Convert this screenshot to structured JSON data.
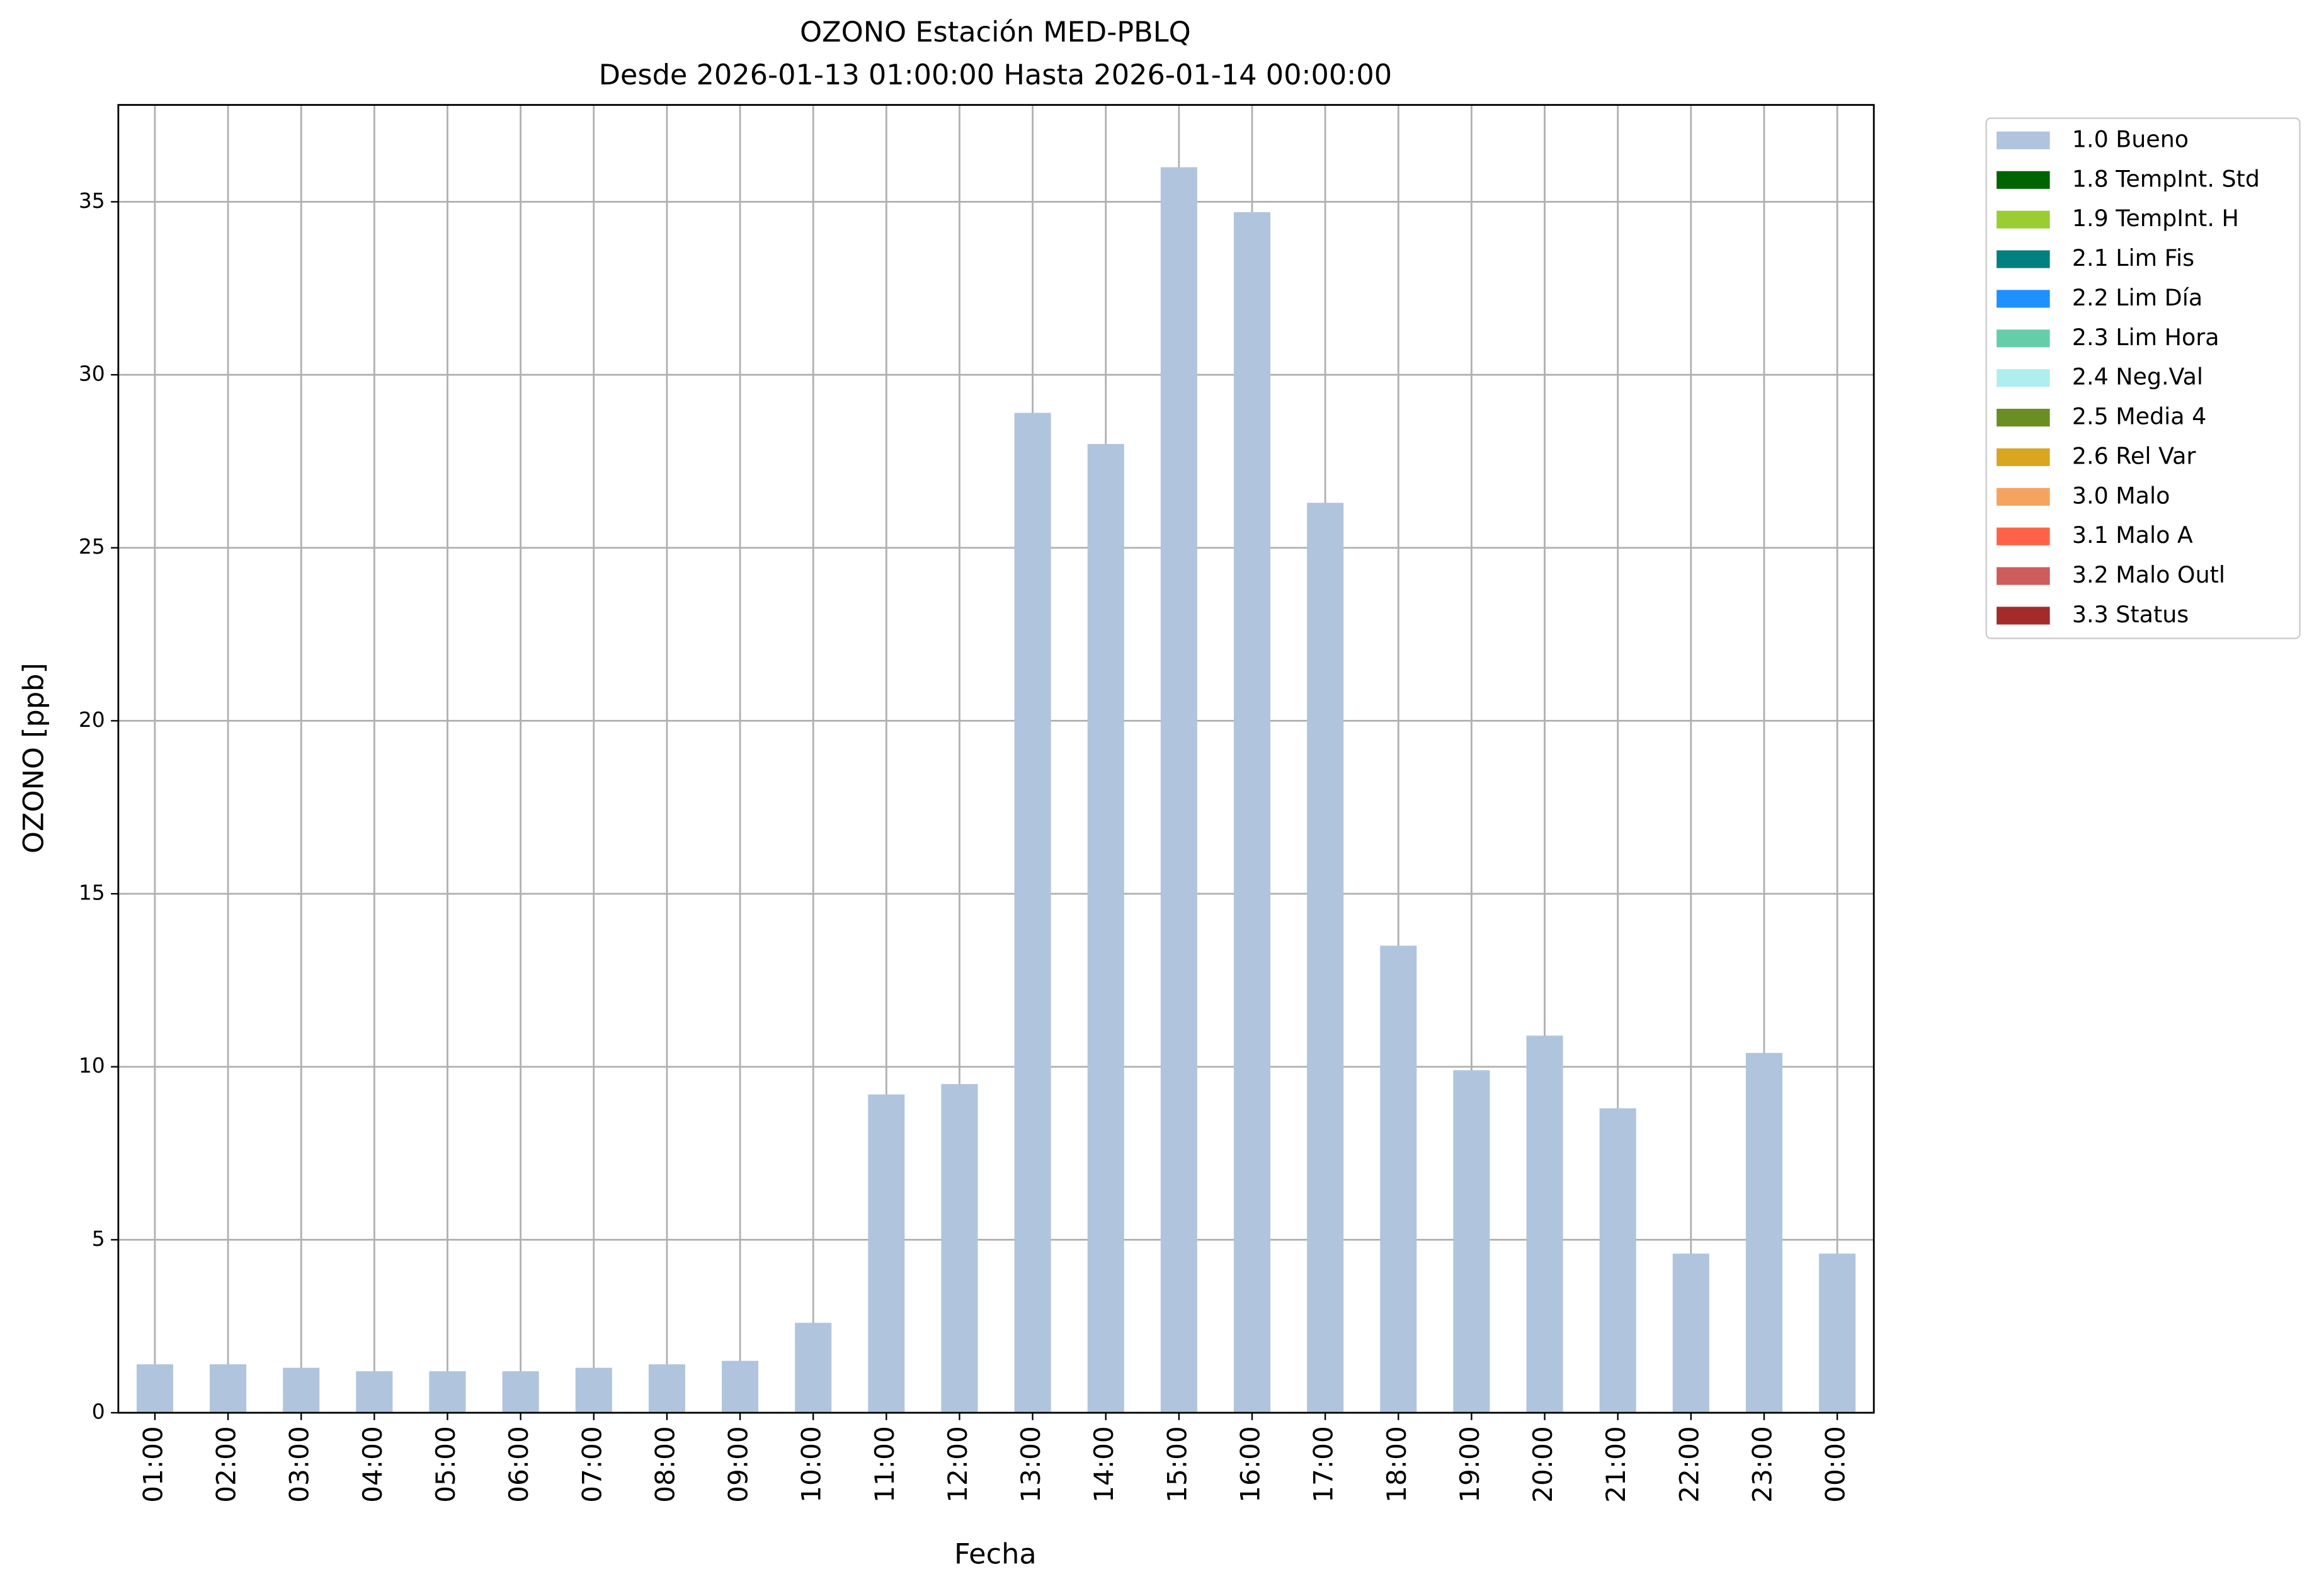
{
  "chart_data": {
    "type": "bar",
    "title": "OZONO Estación MED-PBLQ",
    "subtitle": "Desde 2026-01-13 01:00:00 Hasta 2026-01-14 00:00:00",
    "x_label": "Fecha",
    "y_label": "OZONO [ppb]",
    "categories": [
      "01:00",
      "02:00",
      "03:00",
      "04:00",
      "05:00",
      "06:00",
      "07:00",
      "08:00",
      "09:00",
      "10:00",
      "11:00",
      "12:00",
      "13:00",
      "14:00",
      "15:00",
      "16:00",
      "17:00",
      "18:00",
      "19:00",
      "20:00",
      "21:00",
      "22:00",
      "23:00",
      "00:00"
    ],
    "series": [
      {
        "name": "1.0 Bueno",
        "color": "#b0c4de",
        "values": [
          1.4,
          1.4,
          1.3,
          1.2,
          1.2,
          1.2,
          1.3,
          1.4,
          1.5,
          2.6,
          9.2,
          9.5,
          28.9,
          28.0,
          36.0,
          34.7,
          26.3,
          13.5,
          9.9,
          10.9,
          8.8,
          4.6,
          10.4,
          4.6
        ]
      },
      {
        "name": "1.8 TempInt. Std",
        "color": "#006400",
        "values": [
          null,
          null,
          null,
          null,
          null,
          null,
          null,
          null,
          null,
          null,
          null,
          null,
          null,
          null,
          null,
          null,
          null,
          null,
          null,
          null,
          null,
          null,
          null,
          null
        ]
      },
      {
        "name": "1.9 TempInt. H",
        "color": "#9acd32",
        "values": [
          null,
          null,
          null,
          null,
          null,
          null,
          null,
          null,
          null,
          null,
          null,
          null,
          null,
          null,
          null,
          null,
          null,
          null,
          null,
          null,
          null,
          null,
          null,
          null
        ]
      },
      {
        "name": "2.1 Lim Fis",
        "color": "#008080",
        "values": [
          null,
          null,
          null,
          null,
          null,
          null,
          null,
          null,
          null,
          null,
          null,
          null,
          null,
          null,
          null,
          null,
          null,
          null,
          null,
          null,
          null,
          null,
          null,
          null
        ]
      },
      {
        "name": "2.2 Lim Día",
        "color": "#1e90ff",
        "values": [
          null,
          null,
          null,
          null,
          null,
          null,
          null,
          null,
          null,
          null,
          null,
          null,
          null,
          null,
          null,
          null,
          null,
          null,
          null,
          null,
          null,
          null,
          null,
          null
        ]
      },
      {
        "name": "2.3 Lim Hora",
        "color": "#66cdaa",
        "values": [
          null,
          null,
          null,
          null,
          null,
          null,
          null,
          null,
          null,
          null,
          null,
          null,
          null,
          null,
          null,
          null,
          null,
          null,
          null,
          null,
          null,
          null,
          null,
          null
        ]
      },
      {
        "name": "2.4 Neg.Val",
        "color": "#afeeee",
        "values": [
          null,
          null,
          null,
          null,
          null,
          null,
          null,
          null,
          null,
          null,
          null,
          null,
          null,
          null,
          null,
          null,
          null,
          null,
          null,
          null,
          null,
          null,
          null,
          null
        ]
      },
      {
        "name": "2.5 Media 4",
        "color": "#6b8e23",
        "values": [
          null,
          null,
          null,
          null,
          null,
          null,
          null,
          null,
          null,
          null,
          null,
          null,
          null,
          null,
          null,
          null,
          null,
          null,
          null,
          null,
          null,
          null,
          null,
          null
        ]
      },
      {
        "name": "2.6 Rel Var",
        "color": "#daa520",
        "values": [
          null,
          null,
          null,
          null,
          null,
          null,
          null,
          null,
          null,
          null,
          null,
          null,
          null,
          null,
          null,
          null,
          null,
          null,
          null,
          null,
          null,
          null,
          null,
          null
        ]
      },
      {
        "name": "3.0 Malo",
        "color": "#f4a460",
        "values": [
          null,
          null,
          null,
          null,
          null,
          null,
          null,
          null,
          null,
          null,
          null,
          null,
          null,
          null,
          null,
          null,
          null,
          null,
          null,
          null,
          null,
          null,
          null,
          null
        ]
      },
      {
        "name": "3.1 Malo A",
        "color": "#ff6347",
        "values": [
          null,
          null,
          null,
          null,
          null,
          null,
          null,
          null,
          null,
          null,
          null,
          null,
          null,
          null,
          null,
          null,
          null,
          null,
          null,
          null,
          null,
          null,
          null,
          null
        ]
      },
      {
        "name": "3.2 Malo Outl",
        "color": "#cd5c5c",
        "values": [
          null,
          null,
          null,
          null,
          null,
          null,
          null,
          null,
          null,
          null,
          null,
          null,
          null,
          null,
          null,
          null,
          null,
          null,
          null,
          null,
          null,
          null,
          null,
          null
        ]
      },
      {
        "name": "3.3 Status",
        "color": "#a52a2a",
        "values": [
          null,
          null,
          null,
          null,
          null,
          null,
          null,
          null,
          null,
          null,
          null,
          null,
          null,
          null,
          null,
          null,
          null,
          null,
          null,
          null,
          null,
          null,
          null,
          null
        ]
      }
    ],
    "ylim": [
      0,
      37.8
    ],
    "yticks": [
      0,
      5,
      10,
      15,
      20,
      25,
      30,
      35
    ],
    "grid": true,
    "legend": "outside-upper-right"
  }
}
